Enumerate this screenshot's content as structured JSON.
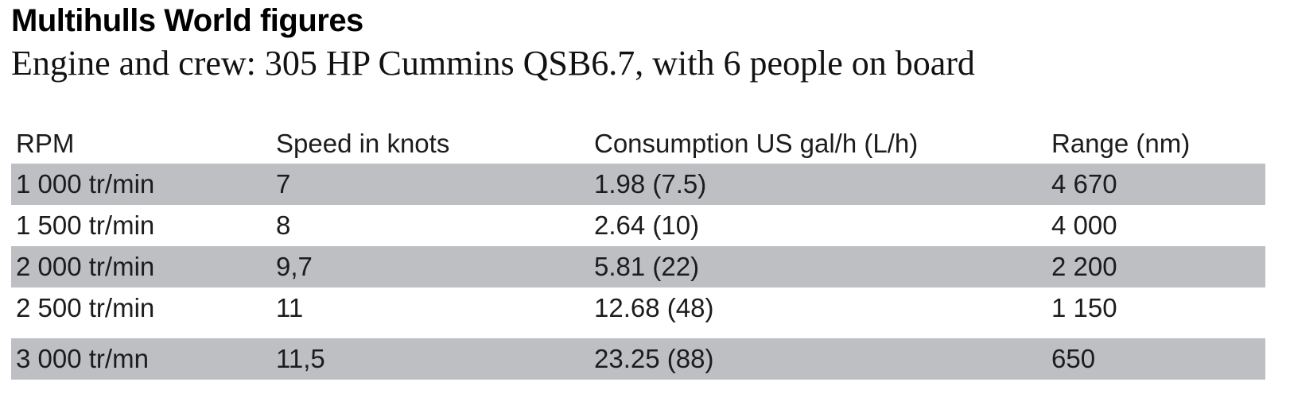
{
  "page": {
    "title": "Multihulls World figures",
    "subtitle": "Engine and crew: 305 HP Cummins QSB6.7, with 6 people on board"
  },
  "colors": {
    "row_shade": "#bdbfc2",
    "text": "#1c1c1e",
    "background": "#ffffff"
  },
  "chart_data": {
    "type": "table",
    "title": "Multihulls World figures",
    "subtitle": "Engine and crew: 305 HP Cummins QSB6.7, with 6 people on board",
    "columns": [
      "RPM",
      "Speed in knots",
      "Consumption US gal/h (L/h)",
      "Range (nm)"
    ],
    "rows": [
      [
        "1 000 tr/min",
        "7",
        "1.98 (7.5)",
        "4 670"
      ],
      [
        "1 500 tr/min",
        "8",
        "2.64 (10)",
        "4 000"
      ],
      [
        "2 000 tr/min",
        "9,7",
        "5.81 (22)",
        "2 200"
      ],
      [
        "2 500 tr/min",
        "11",
        "12.68 (48)",
        "1 150"
      ],
      [
        "3 000 tr/mn",
        "11,5",
        "23.25 (88)",
        "650"
      ]
    ],
    "shaded_rows": [
      0,
      2,
      4
    ],
    "layout_hints": {
      "shading": "alternating rows starting with first data row",
      "gridlines": "none",
      "header_style": "plain, no background"
    }
  }
}
